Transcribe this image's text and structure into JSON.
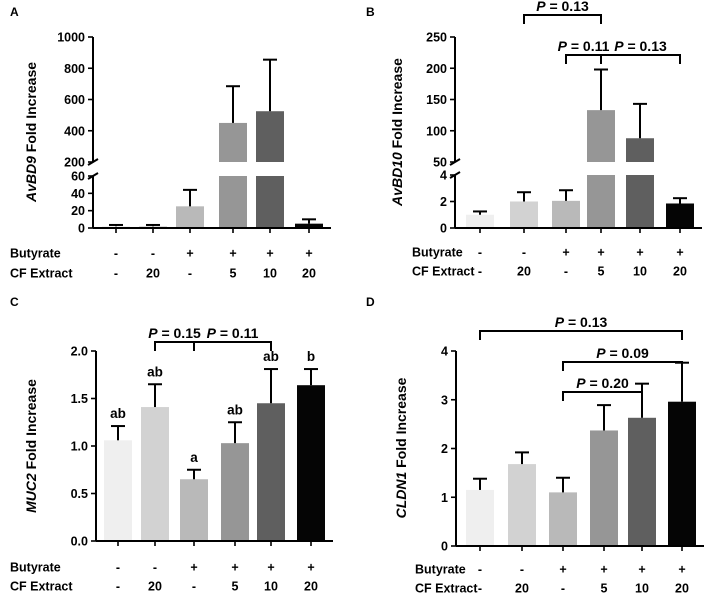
{
  "colors": {
    "bars": [
      "#efefef",
      "#d2d2d2",
      "#b9b9b9",
      "#969696",
      "#5f5f5f",
      "#050505"
    ],
    "error_bar": "#000000"
  },
  "rows": {
    "butyrate_label": "Butyrate",
    "cf_label": "CF Extract",
    "butyrate_values": [
      "-",
      "-",
      "+",
      "+",
      "+",
      "+"
    ],
    "cf_values": [
      "-",
      "20",
      "-",
      "5",
      "10",
      "20"
    ]
  },
  "chart_data": [
    {
      "panel_label": "A",
      "type": "bar",
      "ylabel_italic": "AvBD9",
      "ylabel_rest": " Fold Increase",
      "axis_break": true,
      "lower_range": [
        0,
        60
      ],
      "lower_ticks": [
        "0",
        "20",
        "40",
        "60"
      ],
      "upper_range": [
        200,
        1000
      ],
      "upper_ticks": [
        "200",
        "400",
        "600",
        "800",
        "1000"
      ],
      "values": [
        2,
        2,
        25,
        450,
        525,
        5
      ],
      "errors": [
        1.5,
        1.5,
        19,
        235,
        330,
        5
      ],
      "significance": [],
      "group_letters": []
    },
    {
      "panel_label": "B",
      "type": "bar",
      "ylabel_italic": "AvBD10",
      "ylabel_rest": " Fold Increase",
      "axis_break": true,
      "lower_range": [
        0,
        4
      ],
      "lower_ticks": [
        "0",
        "2",
        "4"
      ],
      "upper_range": [
        50,
        250
      ],
      "upper_ticks": [
        "50",
        "100",
        "150",
        "200",
        "250"
      ],
      "values": [
        1.0,
        2.0,
        2.05,
        133,
        88,
        1.85
      ],
      "errors": [
        0.25,
        0.7,
        0.8,
        65,
        55,
        0.4
      ],
      "significance": [
        {
          "from": 2,
          "to": 4,
          "label": "P = 0.13"
        },
        {
          "from": 3,
          "to": 4,
          "label": "P = 0.11"
        },
        {
          "from": 4,
          "to": 6,
          "label": "P = 0.13"
        }
      ],
      "group_letters": []
    },
    {
      "panel_label": "C",
      "type": "bar",
      "ylabel_italic": "MUC2",
      "ylabel_rest": " Fold Increase",
      "axis_break": false,
      "ylim": [
        0,
        2.0
      ],
      "ticks": [
        "0.0",
        "0.5",
        "1.0",
        "1.5",
        "2.0"
      ],
      "values": [
        1.06,
        1.41,
        0.65,
        1.03,
        1.45,
        1.64
      ],
      "errors": [
        0.15,
        0.24,
        0.1,
        0.22,
        0.36,
        0.17
      ],
      "significance": [
        {
          "from": 2,
          "to": 3,
          "label": "P = 0.15"
        },
        {
          "from": 3,
          "to": 5,
          "label": "P = 0.11"
        }
      ],
      "group_letters": [
        "ab",
        "ab",
        "a",
        "ab",
        "ab",
        "b"
      ]
    },
    {
      "panel_label": "D",
      "type": "bar",
      "ylabel_italic": "CLDN1",
      "ylabel_rest": " Fold Increase",
      "axis_break": false,
      "ylim": [
        0,
        4
      ],
      "ticks": [
        "0",
        "1",
        "2",
        "3",
        "4"
      ],
      "values": [
        1.15,
        1.68,
        1.1,
        2.37,
        2.63,
        2.96
      ],
      "errors": [
        0.23,
        0.24,
        0.3,
        0.52,
        0.7,
        0.8
      ],
      "significance": [
        {
          "from": 1,
          "to": 6,
          "label": "P = 0.13"
        },
        {
          "from": 3,
          "to": 6,
          "label": "P = 0.09"
        },
        {
          "from": 3,
          "to": 5,
          "label": "P = 0.20"
        }
      ],
      "group_letters": []
    }
  ]
}
